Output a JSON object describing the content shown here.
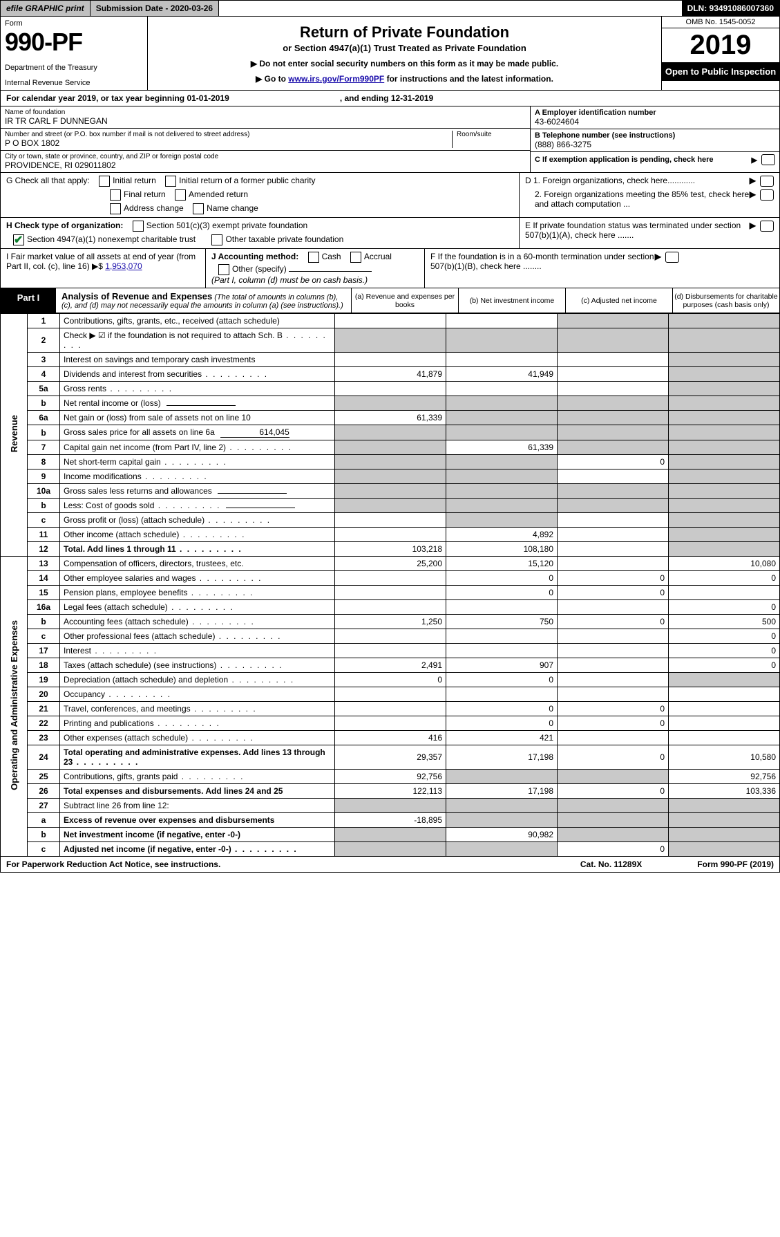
{
  "meta": {
    "efile": "efile GRAPHIC print",
    "submission_label": "Submission Date - 2020-03-26",
    "dln": "DLN: 93491086007360",
    "form_word": "Form",
    "form_num": "990-PF",
    "dept1": "Department of the Treasury",
    "dept2": "Internal Revenue Service",
    "title": "Return of Private Foundation",
    "subtitle": "or Section 4947(a)(1) Trust Treated as Private Foundation",
    "note1": "▶ Do not enter social security numbers on this form as it may be made public.",
    "note2_pre": "▶ Go to ",
    "note2_link": "www.irs.gov/Form990PF",
    "note2_post": " for instructions and the latest information.",
    "omb": "OMB No. 1545-0052",
    "year": "2019",
    "open_inspect": "Open to Public Inspection",
    "cal_year_pre": "For calendar year 2019, or tax year beginning 01-01-2019",
    "cal_year_end": ", and ending 12-31-2019"
  },
  "identity": {
    "name_label": "Name of foundation",
    "name": "IR TR CARL F DUNNEGAN",
    "addr_label": "Number and street (or P.O. box number if mail is not delivered to street address)",
    "addr": "P O BOX 1802",
    "room_label": "Room/suite",
    "city_label": "City or town, state or province, country, and ZIP or foreign postal code",
    "city": "PROVIDENCE, RI  029011802",
    "a_label": "A Employer identification number",
    "a_val": "43-6024604",
    "b_label": "B Telephone number (see instructions)",
    "b_val": "(888) 866-3275",
    "c_label": "C If exemption application is pending, check here",
    "d1": "D 1. Foreign organizations, check here............",
    "d2": "2. Foreign organizations meeting the 85% test, check here and attach computation ...",
    "e": "E  If private foundation status was terminated under section 507(b)(1)(A), check here .......",
    "f": "F  If the foundation is in a 60-month termination under section 507(b)(1)(B), check here ........"
  },
  "checks": {
    "g_label": "G Check all that apply:",
    "initial_return": "Initial return",
    "initial_former": "Initial return of a former public charity",
    "final_return": "Final return",
    "amended": "Amended return",
    "addr_change": "Address change",
    "name_change": "Name change",
    "h_label": "H Check type of organization:",
    "h1": "Section 501(c)(3) exempt private foundation",
    "h2": "Section 4947(a)(1) nonexempt charitable trust",
    "h3": "Other taxable private foundation"
  },
  "ij": {
    "i_label": "I Fair market value of all assets at end of year (from Part II, col. (c), line 16) ▶$",
    "i_val": "1,953,070",
    "j_label": "J Accounting method:",
    "j_cash": "Cash",
    "j_accrual": "Accrual",
    "j_other": "Other (specify)",
    "j_note": "(Part I, column (d) must be on cash basis.)"
  },
  "part1": {
    "label": "Part I",
    "title": "Analysis of Revenue and Expenses",
    "title_note": "(The total of amounts in columns (b), (c), and (d) may not necessarily equal the amounts in column (a) (see instructions).)",
    "col_a": "(a)   Revenue and expenses per books",
    "col_b": "(b)  Net investment income",
    "col_c": "(c)  Adjusted net income",
    "col_d": "(d)  Disbursements for charitable purposes (cash basis only)"
  },
  "sides": {
    "revenue": "Revenue",
    "expenses": "Operating and Administrative Expenses"
  },
  "rows": [
    {
      "n": "1",
      "desc": "Contributions, gifts, grants, etc., received (attach schedule)",
      "a": "",
      "b": "",
      "c": "",
      "d": "",
      "cgrey": true,
      "dgrey": true
    },
    {
      "n": "2",
      "desc": "Check ▶ ☑ if the foundation is not required to attach Sch. B",
      "dots": true,
      "a": "",
      "b": "",
      "c": "",
      "d": "",
      "agrey": true,
      "bgrey": true,
      "cgrey": true,
      "dgrey": true
    },
    {
      "n": "3",
      "desc": "Interest on savings and temporary cash investments",
      "a": "",
      "b": "",
      "c": "",
      "d": "",
      "dgrey": true
    },
    {
      "n": "4",
      "desc": "Dividends and interest from securities",
      "dots": true,
      "a": "41,879",
      "b": "41,949",
      "c": "",
      "d": "",
      "dgrey": true
    },
    {
      "n": "5a",
      "desc": "Gross rents",
      "dots": true,
      "a": "",
      "b": "",
      "c": "",
      "d": "",
      "dgrey": true
    },
    {
      "n": "b",
      "desc": "Net rental income or (loss)",
      "uf": true,
      "a": "",
      "b": "",
      "c": "",
      "d": "",
      "agrey": true,
      "bgrey": true,
      "cgrey": true,
      "dgrey": true
    },
    {
      "n": "6a",
      "desc": "Net gain or (loss) from sale of assets not on line 10",
      "a": "61,339",
      "b": "",
      "c": "",
      "d": "",
      "bgrey": true,
      "cgrey": true,
      "dgrey": true
    },
    {
      "n": "b",
      "desc": "Gross sales price for all assets on line 6a",
      "uf": true,
      "ufval": "614,045",
      "a": "",
      "b": "",
      "c": "",
      "d": "",
      "agrey": true,
      "bgrey": true,
      "cgrey": true,
      "dgrey": true
    },
    {
      "n": "7",
      "desc": "Capital gain net income (from Part IV, line 2)",
      "dots": true,
      "a": "",
      "b": "61,339",
      "c": "",
      "d": "",
      "agrey": true,
      "cgrey": true,
      "dgrey": true
    },
    {
      "n": "8",
      "desc": "Net short-term capital gain",
      "dots": true,
      "a": "",
      "b": "",
      "c": "0",
      "d": "",
      "agrey": true,
      "bgrey": true,
      "dgrey": true
    },
    {
      "n": "9",
      "desc": "Income modifications",
      "dots": true,
      "a": "",
      "b": "",
      "c": "",
      "d": "",
      "agrey": true,
      "bgrey": true,
      "dgrey": true
    },
    {
      "n": "10a",
      "desc": "Gross sales less returns and allowances",
      "uf": true,
      "a": "",
      "b": "",
      "c": "",
      "d": "",
      "agrey": true,
      "bgrey": true,
      "cgrey": true,
      "dgrey": true
    },
    {
      "n": "b",
      "desc": "Less: Cost of goods sold",
      "dots": true,
      "uf": true,
      "a": "",
      "b": "",
      "c": "",
      "d": "",
      "agrey": true,
      "bgrey": true,
      "cgrey": true,
      "dgrey": true
    },
    {
      "n": "c",
      "desc": "Gross profit or (loss) (attach schedule)",
      "dots": true,
      "a": "",
      "b": "",
      "c": "",
      "d": "",
      "bgrey": true,
      "dgrey": true
    },
    {
      "n": "11",
      "desc": "Other income (attach schedule)",
      "dots": true,
      "a": "",
      "b": "4,892",
      "c": "",
      "d": "",
      "dgrey": true
    },
    {
      "n": "12",
      "desc": "Total. Add lines 1 through 11",
      "bold": true,
      "dots": true,
      "a": "103,218",
      "b": "108,180",
      "c": "",
      "d": "",
      "dgrey": true
    },
    {
      "n": "13",
      "desc": "Compensation of officers, directors, trustees, etc.",
      "a": "25,200",
      "b": "15,120",
      "c": "",
      "d": "10,080"
    },
    {
      "n": "14",
      "desc": "Other employee salaries and wages",
      "dots": true,
      "a": "",
      "b": "0",
      "c": "0",
      "d": "0"
    },
    {
      "n": "15",
      "desc": "Pension plans, employee benefits",
      "dots": true,
      "a": "",
      "b": "0",
      "c": "0",
      "d": ""
    },
    {
      "n": "16a",
      "desc": "Legal fees (attach schedule)",
      "dots": true,
      "a": "",
      "b": "",
      "c": "",
      "d": "0"
    },
    {
      "n": "b",
      "desc": "Accounting fees (attach schedule)",
      "dots": true,
      "a": "1,250",
      "b": "750",
      "c": "0",
      "d": "500"
    },
    {
      "n": "c",
      "desc": "Other professional fees (attach schedule)",
      "dots": true,
      "a": "",
      "b": "",
      "c": "",
      "d": "0"
    },
    {
      "n": "17",
      "desc": "Interest",
      "dots": true,
      "a": "",
      "b": "",
      "c": "",
      "d": "0"
    },
    {
      "n": "18",
      "desc": "Taxes (attach schedule) (see instructions)",
      "dots": true,
      "a": "2,491",
      "b": "907",
      "c": "",
      "d": "0"
    },
    {
      "n": "19",
      "desc": "Depreciation (attach schedule) and depletion",
      "dots": true,
      "a": "0",
      "b": "0",
      "c": "",
      "d": "",
      "dgrey": true
    },
    {
      "n": "20",
      "desc": "Occupancy",
      "dots": true,
      "a": "",
      "b": "",
      "c": "",
      "d": ""
    },
    {
      "n": "21",
      "desc": "Travel, conferences, and meetings",
      "dots": true,
      "a": "",
      "b": "0",
      "c": "0",
      "d": ""
    },
    {
      "n": "22",
      "desc": "Printing and publications",
      "dots": true,
      "a": "",
      "b": "0",
      "c": "0",
      "d": ""
    },
    {
      "n": "23",
      "desc": "Other expenses (attach schedule)",
      "dots": true,
      "a": "416",
      "b": "421",
      "c": "",
      "d": ""
    },
    {
      "n": "24",
      "desc": "Total operating and administrative expenses. Add lines 13 through 23",
      "bold": true,
      "dots": true,
      "a": "29,357",
      "b": "17,198",
      "c": "0",
      "d": "10,580"
    },
    {
      "n": "25",
      "desc": "Contributions, gifts, grants paid",
      "dots": true,
      "a": "92,756",
      "b": "",
      "c": "",
      "d": "92,756",
      "bgrey": true,
      "cgrey": true
    },
    {
      "n": "26",
      "desc": "Total expenses and disbursements. Add lines 24 and 25",
      "bold": true,
      "a": "122,113",
      "b": "17,198",
      "c": "0",
      "d": "103,336"
    },
    {
      "n": "27",
      "desc": "Subtract line 26 from line 12:",
      "a": "",
      "b": "",
      "c": "",
      "d": "",
      "agrey": true,
      "bgrey": true,
      "cgrey": true,
      "dgrey": true
    },
    {
      "n": "a",
      "desc": "Excess of revenue over expenses and disbursements",
      "bold": true,
      "a": "-18,895",
      "b": "",
      "c": "",
      "d": "",
      "bgrey": true,
      "cgrey": true,
      "dgrey": true
    },
    {
      "n": "b",
      "desc": "Net investment income (if negative, enter -0-)",
      "bold": true,
      "a": "",
      "b": "90,982",
      "c": "",
      "d": "",
      "agrey": true,
      "cgrey": true,
      "dgrey": true
    },
    {
      "n": "c",
      "desc": "Adjusted net income (if negative, enter -0-)",
      "bold": true,
      "dots": true,
      "a": "",
      "b": "",
      "c": "0",
      "d": "",
      "agrey": true,
      "bgrey": true,
      "dgrey": true
    }
  ],
  "footer": {
    "pra": "For Paperwork Reduction Act Notice, see instructions.",
    "cat": "Cat. No. 11289X",
    "form": "Form 990-PF (2019)"
  }
}
